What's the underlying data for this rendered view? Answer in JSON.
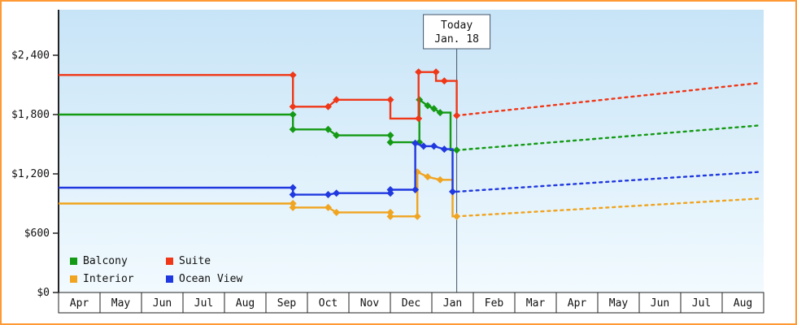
{
  "frame": {
    "border_color": "#ff9933",
    "background": "#ffffff"
  },
  "plot": {
    "bg_top": "#c7e4f7",
    "bg_bottom": "#f2fafe",
    "axis_color": "#222222",
    "today_line_color": "#44546a",
    "text_color": "#111111"
  },
  "chart_data": {
    "type": "line",
    "title": "",
    "grid": false,
    "legend_position": "bottom-left",
    "x_labels": [
      "Apr",
      "May",
      "Jun",
      "Jul",
      "Aug",
      "Sep",
      "Oct",
      "Nov",
      "Dec",
      "Jan",
      "Feb",
      "Mar",
      "Apr",
      "May",
      "Jun",
      "Jul",
      "Aug"
    ],
    "y_ticks": [
      {
        "value": 0,
        "label": "$0"
      },
      {
        "value": 600,
        "label": "$600"
      },
      {
        "value": 1200,
        "label": "$1,200"
      },
      {
        "value": 1800,
        "label": "$1,800"
      },
      {
        "value": 2400,
        "label": "$2,400"
      }
    ],
    "ylim": [
      0,
      2860
    ],
    "x_axis_note": "month_position units: 0 = Apr (left edge), 17 = right edge; prices in USD",
    "today": {
      "month_position": 9.6,
      "line1": "Today",
      "line2": "Jan. 18"
    },
    "legend": [
      {
        "name": "Balcony",
        "color": "#149a14"
      },
      {
        "name": "Suite",
        "color": "#f03717"
      },
      {
        "name": "Interior",
        "color": "#f0a41f"
      },
      {
        "name": "Ocean View",
        "color": "#2038df"
      }
    ],
    "series": [
      {
        "name": "Balcony",
        "color": "#149a14",
        "points": [
          [
            0,
            1800,
            0
          ],
          [
            5.65,
            1800,
            1
          ],
          [
            5.65,
            1650,
            1
          ],
          [
            6.5,
            1650,
            1
          ],
          [
            6.7,
            1590,
            1
          ],
          [
            8.0,
            1590,
            1
          ],
          [
            8.0,
            1520,
            1
          ],
          [
            8.7,
            1520,
            1
          ],
          [
            8.7,
            1950,
            1
          ],
          [
            8.9,
            1890,
            1
          ],
          [
            9.05,
            1860,
            1
          ],
          [
            9.2,
            1820,
            1
          ],
          [
            9.45,
            1820,
            0
          ],
          [
            9.45,
            1440,
            0
          ],
          [
            9.6,
            1440,
            1
          ]
        ],
        "forecast": [
          [
            9.6,
            1440
          ],
          [
            16.9,
            1690
          ]
        ]
      },
      {
        "name": "Suite",
        "color": "#f03717",
        "points": [
          [
            0,
            2200,
            0
          ],
          [
            5.65,
            2200,
            1
          ],
          [
            5.65,
            1880,
            1
          ],
          [
            6.5,
            1880,
            1
          ],
          [
            6.7,
            1950,
            1
          ],
          [
            8.0,
            1950,
            1
          ],
          [
            8.0,
            1760,
            0
          ],
          [
            8.68,
            1760,
            1
          ],
          [
            8.68,
            2230,
            1
          ],
          [
            9.1,
            2230,
            1
          ],
          [
            9.1,
            2140,
            0
          ],
          [
            9.3,
            2140,
            1
          ],
          [
            9.6,
            2140,
            0
          ],
          [
            9.6,
            1790,
            1
          ]
        ],
        "forecast": [
          [
            9.6,
            1790
          ],
          [
            16.9,
            2120
          ]
        ]
      },
      {
        "name": "Interior",
        "color": "#f0a41f",
        "points": [
          [
            0,
            900,
            0
          ],
          [
            5.65,
            900,
            1
          ],
          [
            5.65,
            860,
            1
          ],
          [
            6.5,
            860,
            1
          ],
          [
            6.7,
            810,
            1
          ],
          [
            8.0,
            810,
            1
          ],
          [
            8.0,
            770,
            1
          ],
          [
            8.65,
            770,
            1
          ],
          [
            8.65,
            1220,
            1
          ],
          [
            8.9,
            1170,
            1
          ],
          [
            9.2,
            1140,
            1
          ],
          [
            9.5,
            1140,
            0
          ],
          [
            9.5,
            770,
            0
          ],
          [
            9.6,
            770,
            1
          ]
        ],
        "forecast": [
          [
            9.6,
            770
          ],
          [
            16.9,
            950
          ]
        ]
      },
      {
        "name": "Ocean View",
        "color": "#2038df",
        "points": [
          [
            0,
            1060,
            0
          ],
          [
            5.65,
            1060,
            1
          ],
          [
            5.65,
            990,
            1
          ],
          [
            6.5,
            990,
            1
          ],
          [
            6.7,
            1005,
            1
          ],
          [
            8.0,
            1005,
            1
          ],
          [
            8.0,
            1040,
            1
          ],
          [
            8.6,
            1040,
            1
          ],
          [
            8.6,
            1510,
            1
          ],
          [
            8.8,
            1480,
            1
          ],
          [
            9.05,
            1480,
            1
          ],
          [
            9.3,
            1450,
            1
          ],
          [
            9.5,
            1450,
            0
          ],
          [
            9.5,
            1020,
            1
          ],
          [
            9.6,
            1020,
            0
          ]
        ],
        "forecast": [
          [
            9.6,
            1020
          ],
          [
            16.9,
            1220
          ]
        ]
      }
    ]
  }
}
